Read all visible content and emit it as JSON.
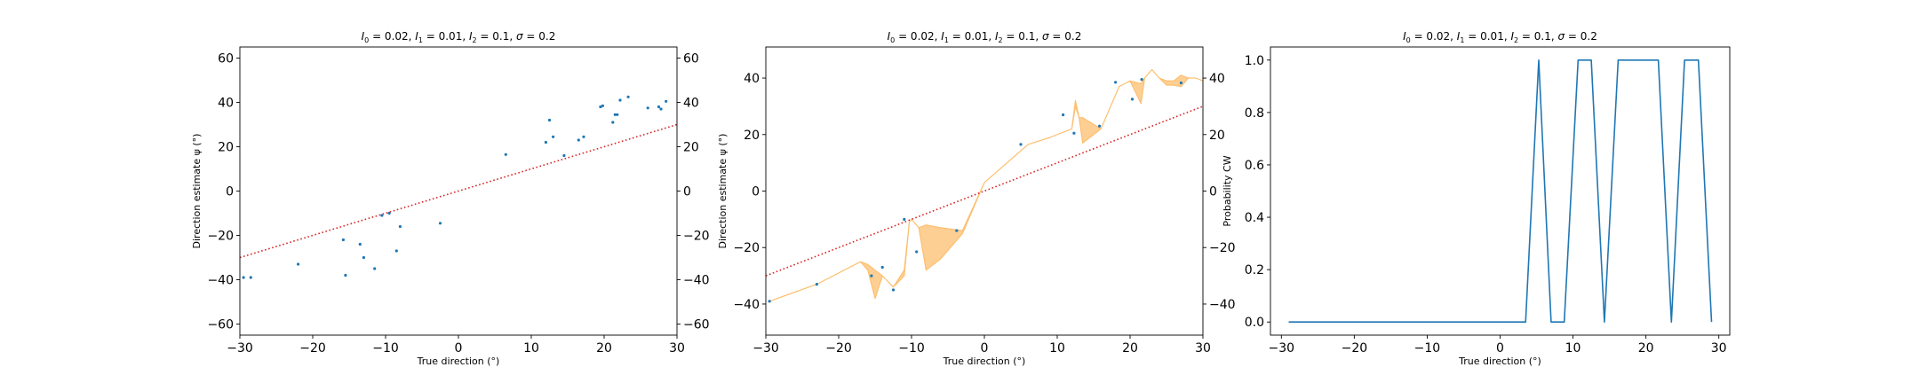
{
  "chart_data": [
    {
      "type": "scatter",
      "title": "I_0 = 0.02, I_1 = 0.01, I_2 = 0.1, σ = 0.2",
      "title_parts": [
        [
          "I",
          "0"
        ],
        [
          "I",
          "1"
        ],
        [
          "I",
          "2"
        ],
        [
          "σ",
          ""
        ]
      ],
      "title_values": [
        "0.02",
        "0.01",
        "0.1",
        "0.2"
      ],
      "xlabel": "True direction (°)",
      "ylabel": "Direction estimate ψ (°)",
      "xlim": [
        -30,
        30
      ],
      "ylim": [
        -65,
        65
      ],
      "xticks": [
        -30,
        -20,
        -10,
        0,
        10,
        20,
        30
      ],
      "yticks": [
        -60,
        -40,
        -20,
        0,
        20,
        40,
        60
      ],
      "right_yticks": [
        -60,
        -40,
        -20,
        0,
        20,
        40,
        60
      ],
      "grid": false,
      "identity_line": {
        "x": [
          -30,
          30
        ],
        "y": [
          -30,
          30
        ],
        "color": "#d62728",
        "style": "dotted"
      },
      "series": [
        {
          "color": "#1f77b4",
          "points": [
            [
              -29.5,
              -39
            ],
            [
              -28.5,
              -39
            ],
            [
              -22,
              -33
            ],
            [
              -15.8,
              -22
            ],
            [
              -15.5,
              -38
            ],
            [
              -13.5,
              -24
            ],
            [
              -13,
              -30
            ],
            [
              -11.5,
              -35
            ],
            [
              -10.5,
              -11
            ],
            [
              -9.5,
              -10
            ],
            [
              -8.5,
              -27
            ],
            [
              -8,
              -16
            ],
            [
              -2.5,
              -14.5
            ],
            [
              6.5,
              16.5
            ],
            [
              12,
              22
            ],
            [
              12.5,
              32
            ],
            [
              13,
              24.5
            ],
            [
              14.5,
              16
            ],
            [
              16.5,
              23
            ],
            [
              17.2,
              24.5
            ],
            [
              19.5,
              38
            ],
            [
              19.8,
              38.5
            ],
            [
              21.2,
              31
            ],
            [
              21.5,
              34.5
            ],
            [
              21.8,
              34.5
            ],
            [
              22.2,
              41
            ],
            [
              23.3,
              42.5
            ],
            [
              26,
              37.5
            ],
            [
              27.5,
              38
            ],
            [
              27.8,
              37
            ],
            [
              28.5,
              40.5
            ]
          ]
        }
      ]
    },
    {
      "type": "line",
      "title": "I_0 = 0.02, I_1 = 0.01, I_2 = 0.1, σ = 0.2",
      "title_parts": [
        [
          "I",
          "0"
        ],
        [
          "I",
          "1"
        ],
        [
          "I",
          "2"
        ],
        [
          "σ",
          ""
        ]
      ],
      "title_values": [
        "0.02",
        "0.01",
        "0.1",
        "0.2"
      ],
      "xlabel": "True direction (°)",
      "ylabel": "Direction estimate ψ (°)",
      "xlim": [
        -30,
        30
      ],
      "ylim": [
        -51,
        51
      ],
      "xticks": [
        -30,
        -20,
        -10,
        0,
        10,
        20,
        30
      ],
      "yticks": [
        -40,
        -20,
        0,
        20,
        40
      ],
      "right_yticks": [
        -40,
        -20,
        0,
        20,
        40
      ],
      "grid": false,
      "identity_line": {
        "x": [
          -30,
          30
        ],
        "y": [
          -30,
          30
        ],
        "color": "#d62728",
        "style": "dotted"
      },
      "band": {
        "color": "#fdbf6f",
        "x": [
          -29.5,
          -23,
          -17,
          -16,
          -15,
          -14,
          -12.5,
          -11,
          -10.3,
          -10,
          -9,
          -8,
          -6,
          -3,
          0,
          6,
          9,
          11,
          12,
          12.5,
          13,
          13.5,
          16,
          18.5,
          20,
          21.5,
          22,
          23,
          24,
          25,
          26,
          27,
          28,
          29,
          30
        ],
        "lower": [
          -39,
          -33,
          -25,
          -28,
          -38,
          -30,
          -34,
          -30,
          -11,
          -10,
          -13,
          -28,
          -24,
          -15,
          3,
          16.5,
          19,
          21,
          22,
          30,
          26,
          17,
          22,
          37,
          39,
          31,
          40,
          43,
          40,
          37.5,
          37.5,
          37,
          40,
          40,
          39
        ],
        "upper": [
          -39,
          -33,
          -25,
          -26,
          -28,
          -30,
          -34,
          -28,
          -11,
          -10,
          -13,
          -12,
          -13,
          -14,
          3,
          16.5,
          19,
          21,
          22,
          32,
          26,
          26,
          22,
          37,
          39,
          38,
          40,
          43,
          40,
          39,
          39,
          41,
          40,
          40,
          39
        ]
      },
      "series": [
        {
          "color": "#1f77b4",
          "points": [
            [
              -29.5,
              -39
            ],
            [
              -23,
              -33
            ],
            [
              -15.5,
              -30
            ],
            [
              -14,
              -27
            ],
            [
              -12.5,
              -35
            ],
            [
              -11,
              -10
            ],
            [
              -9.3,
              -21.5
            ],
            [
              -3.8,
              -14
            ],
            [
              5,
              16.5
            ],
            [
              10.8,
              27
            ],
            [
              12.3,
              20.5
            ],
            [
              15.8,
              23
            ],
            [
              18,
              38.5
            ],
            [
              20.3,
              32.5
            ],
            [
              21.6,
              39.5
            ],
            [
              27,
              38.3
            ]
          ]
        }
      ]
    },
    {
      "type": "line",
      "title": "I_0 = 0.02, I_1 = 0.01, I_2 = 0.1, σ = 0.2",
      "title_parts": [
        [
          "I",
          "0"
        ],
        [
          "I",
          "1"
        ],
        [
          "I",
          "2"
        ],
        [
          "σ",
          ""
        ]
      ],
      "title_values": [
        "0.02",
        "0.01",
        "0.1",
        "0.2"
      ],
      "xlabel": "True direction (°)",
      "ylabel": "Probability CW",
      "xlim": [
        -31.5,
        31.5
      ],
      "ylim": [
        -0.05,
        1.05
      ],
      "xticks": [
        -30,
        -20,
        -10,
        0,
        10,
        20,
        30
      ],
      "yticks": [
        0.0,
        0.2,
        0.4,
        0.6,
        0.8,
        1.0
      ],
      "ytick_labels": [
        "0.0",
        "0.2",
        "0.4",
        "0.6",
        "0.8",
        "1.0"
      ],
      "grid": false,
      "series": [
        {
          "color": "#1f77b4",
          "x": [
            -29,
            3.5,
            5.3,
            7,
            8.8,
            10.7,
            12.5,
            14.3,
            16.2,
            18,
            19.8,
            21.7,
            23.5,
            25.3,
            27.2,
            29
          ],
          "values": [
            0,
            0,
            1,
            0,
            0,
            1,
            1,
            0,
            1,
            1,
            1,
            1,
            0,
            1,
            1,
            0
          ]
        }
      ]
    }
  ]
}
